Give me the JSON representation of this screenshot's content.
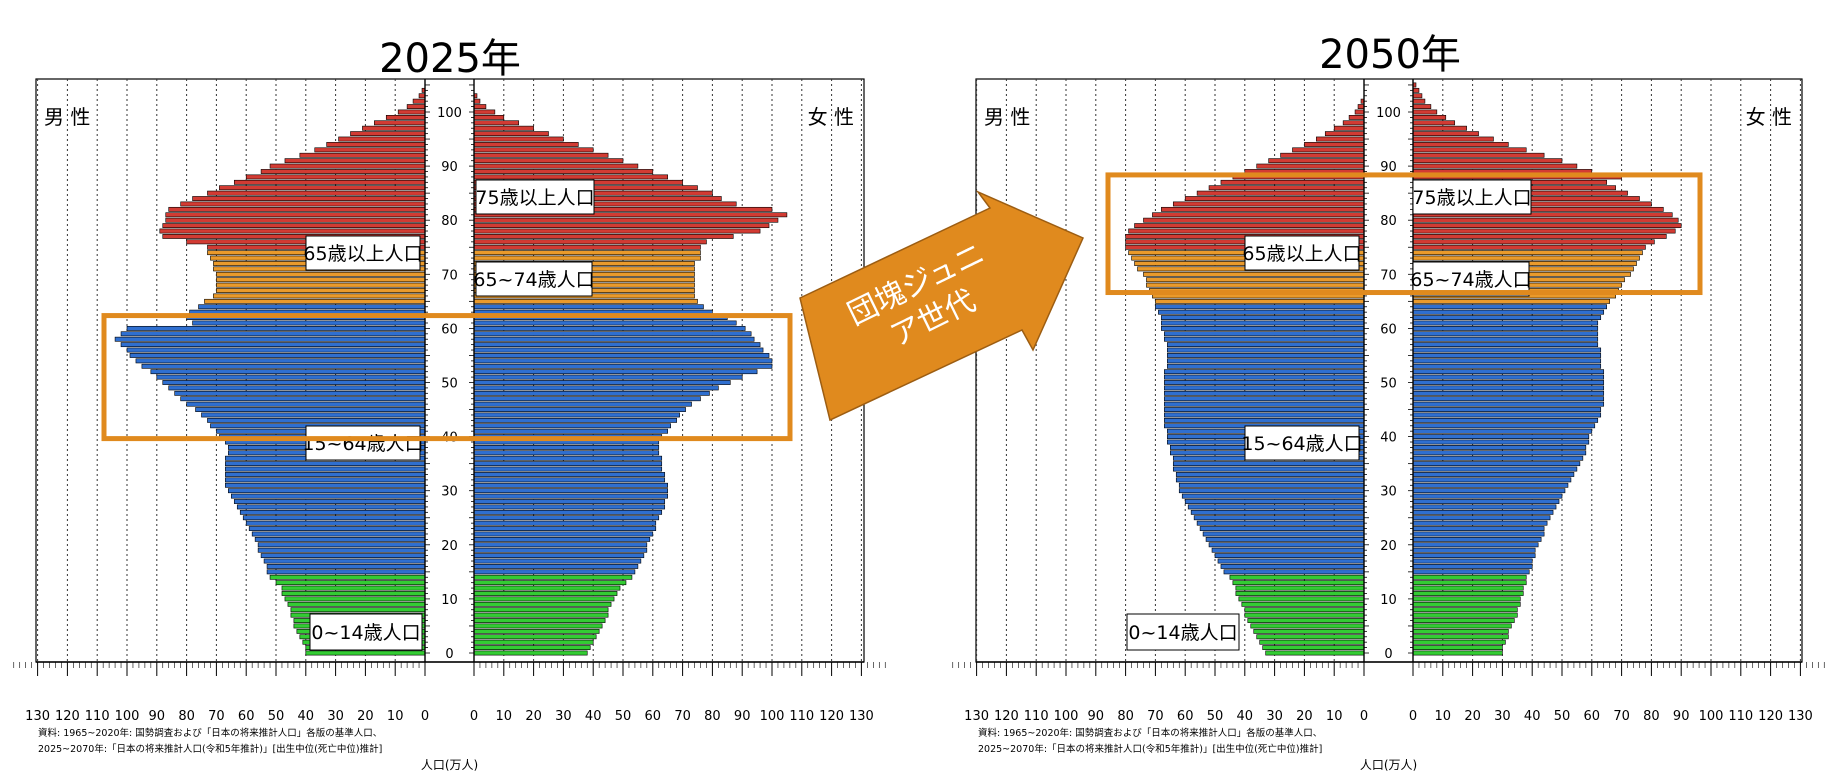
{
  "chart_data": [
    {
      "type": "bar",
      "subtype": "population-pyramid",
      "title": "2025年",
      "xlabel": "人口(万人)",
      "ylabel": "",
      "left_label": "男 性",
      "right_label": "女 性",
      "xlim": [
        0,
        130
      ],
      "ylim": [
        0,
        105
      ],
      "x_ticks": [
        130,
        120,
        110,
        100,
        90,
        80,
        70,
        60,
        50,
        40,
        30,
        20,
        10,
        0
      ],
      "age_ticks": [
        0,
        10,
        20,
        30,
        40,
        50,
        60,
        70,
        80,
        90,
        100
      ],
      "grid": true,
      "age_bands": [
        {
          "name": "0~14歳人口",
          "from": 0,
          "to": 14,
          "color": "#33cc33"
        },
        {
          "name": "15~64歳人口",
          "from": 15,
          "to": 64,
          "color": "#2f6fd0"
        },
        {
          "name": "65~74歳人口",
          "from": 65,
          "to": 74,
          "color": "#ea9a2b"
        },
        {
          "name": "75歳以上人口",
          "from": 75,
          "to": 105,
          "color": "#d23b33"
        }
      ],
      "labels": [
        "75歳以上人口",
        "65~74歳人口",
        "65歳以上人口",
        "15~64歳人口",
        "0~14歳人口"
      ],
      "highlight": {
        "from_age": 40,
        "to_age": 62
      },
      "male": [
        40,
        40,
        41,
        42,
        43,
        44,
        44,
        45,
        45,
        46,
        47,
        48,
        48,
        50,
        52,
        53,
        53,
        54,
        55,
        56,
        56,
        57,
        58,
        59,
        60,
        61,
        62,
        63,
        64,
        65,
        66,
        67,
        67,
        67,
        67,
        67,
        67,
        66,
        66,
        67,
        69,
        70,
        72,
        73,
        75,
        77,
        80,
        82,
        84,
        86,
        88,
        90,
        92,
        95,
        97,
        99,
        100,
        102,
        104,
        102,
        100,
        78,
        80,
        79,
        76,
        74,
        71,
        70,
        70,
        70,
        70,
        71,
        71,
        72,
        73,
        73,
        80,
        88,
        89,
        88,
        87,
        87,
        86,
        82,
        78,
        73,
        69,
        64,
        60,
        55,
        52,
        47,
        42,
        37,
        33,
        29,
        25,
        21,
        17,
        13,
        9,
        6,
        4,
        2,
        1,
        0
      ],
      "female": [
        38,
        39,
        40,
        41,
        42,
        43,
        44,
        45,
        45,
        46,
        47,
        48,
        49,
        51,
        53,
        54,
        55,
        56,
        57,
        58,
        58,
        59,
        60,
        61,
        61,
        62,
        63,
        64,
        64,
        65,
        65,
        65,
        64,
        64,
        63,
        63,
        63,
        62,
        62,
        62,
        63,
        65,
        66,
        68,
        69,
        71,
        73,
        76,
        79,
        82,
        86,
        90,
        95,
        100,
        100,
        99,
        97,
        96,
        94,
        93,
        91,
        88,
        85,
        80,
        77,
        75,
        74,
        74,
        74,
        74,
        74,
        74,
        74,
        76,
        76,
        76,
        78,
        87,
        96,
        99,
        102,
        105,
        100,
        88,
        83,
        80,
        75,
        70,
        65,
        60,
        55,
        50,
        45,
        40,
        35,
        30,
        25,
        20,
        15,
        10,
        7,
        4,
        2,
        1,
        0,
        0
      ]
    },
    {
      "type": "bar",
      "subtype": "population-pyramid",
      "title": "2050年",
      "xlabel": "人口(万人)",
      "ylabel": "",
      "left_label": "男 性",
      "right_label": "女 性",
      "xlim": [
        0,
        130
      ],
      "ylim": [
        0,
        105
      ],
      "x_ticks": [
        130,
        120,
        110,
        100,
        90,
        80,
        70,
        60,
        50,
        40,
        30,
        20,
        10,
        0
      ],
      "age_ticks": [
        0,
        10,
        20,
        30,
        40,
        50,
        60,
        70,
        80,
        90,
        100
      ],
      "grid": true,
      "age_bands": [
        {
          "name": "0~14歳人口",
          "from": 0,
          "to": 14,
          "color": "#33cc33"
        },
        {
          "name": "15~64歳人口",
          "from": 15,
          "to": 64,
          "color": "#2f6fd0"
        },
        {
          "name": "65~74歳人口",
          "from": 65,
          "to": 74,
          "color": "#ea9a2b"
        },
        {
          "name": "75歳以上人口",
          "from": 75,
          "to": 105,
          "color": "#d23b33"
        }
      ],
      "labels": [
        "75歳以上人口",
        "65~74歳人口",
        "65歳以上人口",
        "15~64歳人口",
        "0~14歳人口"
      ],
      "highlight": {
        "from_age": 67,
        "to_age": 88
      },
      "male": [
        33,
        34,
        35,
        36,
        37,
        38,
        39,
        40,
        40,
        41,
        42,
        43,
        43,
        44,
        45,
        47,
        48,
        49,
        50,
        51,
        52,
        53,
        54,
        55,
        56,
        57,
        58,
        59,
        60,
        61,
        62,
        62,
        63,
        63,
        64,
        64,
        64,
        65,
        65,
        66,
        66,
        66,
        67,
        67,
        67,
        67,
        67,
        67,
        67,
        67,
        67,
        67,
        67,
        66,
        66,
        66,
        66,
        66,
        67,
        67,
        68,
        68,
        68,
        69,
        70,
        70,
        71,
        72,
        73,
        73,
        74,
        76,
        77,
        78,
        79,
        80,
        80,
        80,
        79,
        77,
        74,
        71,
        68,
        64,
        60,
        56,
        52,
        48,
        44,
        40,
        36,
        32,
        28,
        24,
        20,
        16,
        13,
        10,
        7,
        5,
        3,
        2,
        1,
        0,
        0,
        0
      ],
      "female": [
        30,
        30,
        31,
        32,
        32,
        33,
        34,
        35,
        35,
        36,
        36,
        37,
        37,
        38,
        38,
        39,
        40,
        40,
        41,
        41,
        42,
        43,
        44,
        44,
        45,
        46,
        47,
        48,
        49,
        50,
        51,
        52,
        53,
        54,
        55,
        56,
        57,
        58,
        58,
        59,
        59,
        60,
        61,
        62,
        63,
        63,
        64,
        64,
        64,
        64,
        64,
        64,
        64,
        63,
        63,
        63,
        63,
        62,
        62,
        62,
        62,
        62,
        63,
        64,
        65,
        66,
        68,
        69,
        70,
        71,
        73,
        74,
        75,
        76,
        77,
        78,
        81,
        85,
        88,
        90,
        89,
        87,
        84,
        80,
        76,
        72,
        68,
        65,
        70,
        60,
        55,
        50,
        44,
        38,
        32,
        27,
        22,
        18,
        14,
        11,
        8,
        6,
        4,
        3,
        2,
        1
      ]
    }
  ],
  "note_line1": "資料: 1965~2020年: 国勢調査および「日本の将来推計人口」各版の基準人口、",
  "note_line2": "2025~2070年:「日本の将来推計人口(令和5年推計)」[出生中位(死亡中位)推計]",
  "arrow_label_line1": "団塊ジュニ",
  "arrow_label_line2": "ア世代",
  "colors": {
    "highlight": "#e08a1e",
    "arrow": "#e08a1e",
    "axis": "#000000"
  }
}
